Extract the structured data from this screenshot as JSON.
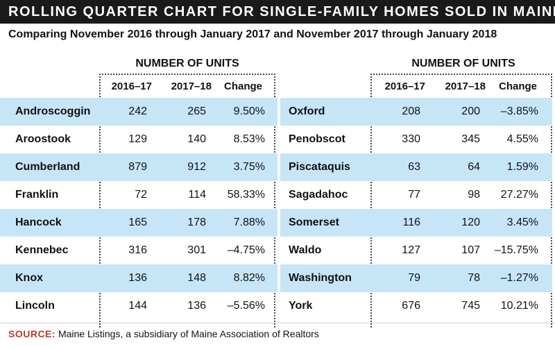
{
  "title": "ROLLING QUARTER CHART FOR SINGLE-FAMILY HOMES SOLD IN MAINE",
  "subtitle": "Comparing November 2016 through January 2017 and November 2017 through January 2018",
  "source": {
    "label": "SOURCE:",
    "text": "Maine Listings, a subsidiary of Maine Association of Realtors"
  },
  "colors": {
    "title_bar": "#1a1a1a",
    "row_shade": "#c6e6f8",
    "source_label": "#c0392b"
  },
  "chart_data": {
    "type": "table",
    "group_header": "NUMBER OF UNITS",
    "columns": [
      "2016–17",
      "2017–18",
      "Change"
    ],
    "tables": [
      {
        "rows": [
          {
            "county": "Androscoggin",
            "v2016_17": 242,
            "v2017_18": 265,
            "change": "9.50%"
          },
          {
            "county": "Aroostook",
            "v2016_17": 129,
            "v2017_18": 140,
            "change": "8.53%"
          },
          {
            "county": "Cumberland",
            "v2016_17": 879,
            "v2017_18": 912,
            "change": "3.75%"
          },
          {
            "county": "Franklin",
            "v2016_17": 72,
            "v2017_18": 114,
            "change": "58.33%"
          },
          {
            "county": "Hancock",
            "v2016_17": 165,
            "v2017_18": 178,
            "change": "7.88%"
          },
          {
            "county": "Kennebec",
            "v2016_17": 316,
            "v2017_18": 301,
            "change": "–4.75%"
          },
          {
            "county": "Knox",
            "v2016_17": 136,
            "v2017_18": 148,
            "change": "8.82%"
          },
          {
            "county": "Lincoln",
            "v2016_17": 144,
            "v2017_18": 136,
            "change": "–5.56%"
          }
        ]
      },
      {
        "rows": [
          {
            "county": "Oxford",
            "v2016_17": 208,
            "v2017_18": 200,
            "change": "–3.85%"
          },
          {
            "county": "Penobscot",
            "v2016_17": 330,
            "v2017_18": 345,
            "change": "4.55%"
          },
          {
            "county": "Piscataquis",
            "v2016_17": 63,
            "v2017_18": 64,
            "change": "1.59%"
          },
          {
            "county": "Sagadahoc",
            "v2016_17": 77,
            "v2017_18": 98,
            "change": "27.27%"
          },
          {
            "county": "Somerset",
            "v2016_17": 116,
            "v2017_18": 120,
            "change": "3.45%"
          },
          {
            "county": "Waldo",
            "v2016_17": 127,
            "v2017_18": 107,
            "change": "–15.75%"
          },
          {
            "county": "Washington",
            "v2016_17": 79,
            "v2017_18": 78,
            "change": "–1.27%"
          },
          {
            "county": "York",
            "v2016_17": 676,
            "v2017_18": 745,
            "change": "10.21%"
          }
        ]
      }
    ]
  }
}
